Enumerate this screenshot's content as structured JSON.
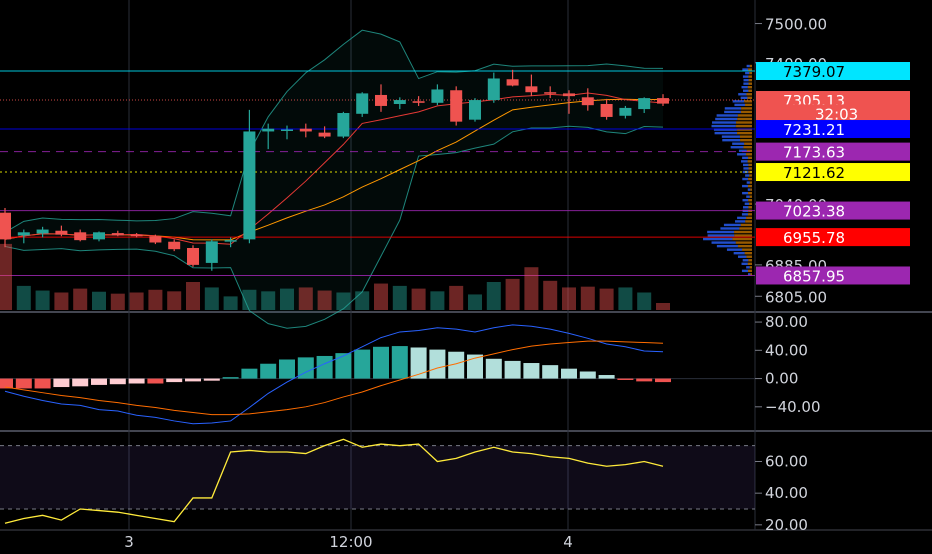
{
  "chart_data": {
    "type": "candlestick",
    "x_ticks": [
      "3",
      "12:00",
      "4"
    ],
    "price_axis": {
      "ylim": [
        6770,
        7560
      ],
      "ticks": [
        "7500.00",
        "7400.00",
        "7040.00",
        "6885.00",
        "6805.00"
      ]
    },
    "price_labels": [
      {
        "text": "7379.07",
        "value": 7379.07,
        "bg": "#00e5ff",
        "fg": "#000000"
      },
      {
        "text": "7305.13",
        "value": 7305.13,
        "bg": "#ef5350",
        "fg": "#ffffff"
      },
      {
        "text": "32:03",
        "value": 7271,
        "bg": "#ef5350",
        "fg": "#ffffff"
      },
      {
        "text": "7231.21",
        "value": 7231.21,
        "bg": "#0000ff",
        "fg": "#ffffff"
      },
      {
        "text": "7173.63",
        "value": 7173.63,
        "bg": "#9c27b0",
        "fg": "#ffffff"
      },
      {
        "text": "7121.62",
        "value": 7121.62,
        "bg": "#ffff00",
        "fg": "#000000"
      },
      {
        "text": "7023.38",
        "value": 7023.38,
        "bg": "#9c27b0",
        "fg": "#ffffff"
      },
      {
        "text": "6955.78",
        "value": 6955.78,
        "bg": "#ff0000",
        "fg": "#ffffff"
      },
      {
        "text": "6857.95",
        "value": 6857.95,
        "bg": "#9c27b0",
        "fg": "#ffffff"
      }
    ],
    "candles": [
      {
        "o": 7018,
        "h": 7030,
        "l": 6930,
        "c": 6950
      },
      {
        "o": 6960,
        "h": 6975,
        "l": 6940,
        "c": 6968
      },
      {
        "o": 6965,
        "h": 6982,
        "l": 6955,
        "c": 6975
      },
      {
        "o": 6972,
        "h": 6985,
        "l": 6958,
        "c": 6962
      },
      {
        "o": 6968,
        "h": 6975,
        "l": 6945,
        "c": 6948
      },
      {
        "o": 6950,
        "h": 6970,
        "l": 6945,
        "c": 6968
      },
      {
        "o": 6966,
        "h": 6972,
        "l": 6958,
        "c": 6960
      },
      {
        "o": 6962,
        "h": 6966,
        "l": 6955,
        "c": 6958
      },
      {
        "o": 6958,
        "h": 6962,
        "l": 6938,
        "c": 6942
      },
      {
        "o": 6944,
        "h": 6950,
        "l": 6920,
        "c": 6925
      },
      {
        "o": 6928,
        "h": 6935,
        "l": 6880,
        "c": 6885
      },
      {
        "o": 6890,
        "h": 6950,
        "l": 6870,
        "c": 6945
      },
      {
        "o": 6945,
        "h": 6955,
        "l": 6930,
        "c": 6948
      },
      {
        "o": 6950,
        "h": 7280,
        "l": 6940,
        "c": 7225
      },
      {
        "o": 7225,
        "h": 7245,
        "l": 7180,
        "c": 7232
      },
      {
        "o": 7228,
        "h": 7240,
        "l": 7205,
        "c": 7230
      },
      {
        "o": 7232,
        "h": 7245,
        "l": 7210,
        "c": 7225
      },
      {
        "o": 7222,
        "h": 7238,
        "l": 7208,
        "c": 7212
      },
      {
        "o": 7212,
        "h": 7275,
        "l": 7208,
        "c": 7272
      },
      {
        "o": 7270,
        "h": 7325,
        "l": 7262,
        "c": 7322
      },
      {
        "o": 7318,
        "h": 7345,
        "l": 7275,
        "c": 7290
      },
      {
        "o": 7295,
        "h": 7312,
        "l": 7282,
        "c": 7305
      },
      {
        "o": 7302,
        "h": 7315,
        "l": 7290,
        "c": 7298
      },
      {
        "o": 7298,
        "h": 7345,
        "l": 7292,
        "c": 7332
      },
      {
        "o": 7330,
        "h": 7340,
        "l": 7240,
        "c": 7250
      },
      {
        "o": 7255,
        "h": 7310,
        "l": 7250,
        "c": 7305
      },
      {
        "o": 7305,
        "h": 7375,
        "l": 7298,
        "c": 7360
      },
      {
        "o": 7358,
        "h": 7382,
        "l": 7340,
        "c": 7342
      },
      {
        "o": 7340,
        "h": 7370,
        "l": 7315,
        "c": 7325
      },
      {
        "o": 7325,
        "h": 7340,
        "l": 7310,
        "c": 7322
      },
      {
        "o": 7322,
        "h": 7330,
        "l": 7270,
        "c": 7315
      },
      {
        "o": 7312,
        "h": 7335,
        "l": 7278,
        "c": 7292
      },
      {
        "o": 7295,
        "h": 7308,
        "l": 7255,
        "c": 7262
      },
      {
        "o": 7265,
        "h": 7290,
        "l": 7258,
        "c": 7285
      },
      {
        "o": 7282,
        "h": 7312,
        "l": 7272,
        "c": 7310
      },
      {
        "o": 7310,
        "h": 7320,
        "l": 7290,
        "c": 7296
      }
    ],
    "volume": [
      170,
      62,
      50,
      45,
      55,
      47,
      42,
      45,
      52,
      48,
      72,
      58,
      35,
      52,
      48,
      55,
      58,
      50,
      45,
      48,
      68,
      62,
      55,
      48,
      62,
      40,
      72,
      80,
      110,
      75,
      58,
      60,
      55,
      58,
      45,
      18
    ],
    "macd_axis": {
      "ylim": [
        -70,
        90
      ],
      "ticks": [
        "80.00",
        "40.00",
        "0.00",
        "−40.00"
      ]
    },
    "macd_hist": [
      -14,
      -14,
      -14,
      -12,
      -11,
      -9,
      -8,
      -7,
      -7,
      -5,
      -4,
      -3,
      2,
      14,
      21,
      27,
      30,
      32,
      36,
      41,
      45,
      46,
      44,
      41,
      38,
      34,
      28,
      25,
      22,
      19,
      14,
      10,
      5,
      -2,
      -4,
      -5
    ],
    "macd_line": [
      -18,
      -25,
      -31,
      -36,
      -38,
      -44,
      -46,
      -52,
      -55,
      -60,
      -64,
      -63,
      -60,
      -41,
      -21,
      -5,
      9,
      21,
      32,
      45,
      58,
      66,
      68,
      72,
      70,
      66,
      72,
      76,
      74,
      70,
      64,
      57,
      49,
      45,
      39,
      38
    ],
    "signal_line": [
      -12,
      -16,
      -20,
      -24,
      -27,
      -31,
      -34,
      -38,
      -41,
      -45,
      -48,
      -51,
      -51,
      -50,
      -47,
      -44,
      -40,
      -34,
      -26,
      -19,
      -10,
      -2,
      6,
      15,
      21,
      29,
      35,
      41,
      46,
      49,
      51,
      53,
      53,
      52,
      51,
      50
    ],
    "rsi_axis": {
      "ylim": [
        18,
        78
      ],
      "ticks": [
        "60.00",
        "40.00",
        "20.00"
      ],
      "band": [
        30,
        70
      ]
    },
    "rsi": [
      21,
      24,
      26,
      23,
      30,
      29,
      28,
      26,
      24,
      22,
      37,
      37,
      66,
      67,
      66,
      66,
      65,
      70,
      74,
      69,
      71,
      70,
      71,
      60,
      62,
      66,
      69,
      66,
      65,
      63,
      62,
      59,
      57,
      58,
      60,
      57
    ]
  }
}
